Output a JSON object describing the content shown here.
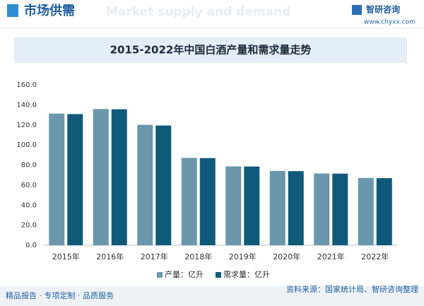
{
  "header": {
    "title": "市场供需",
    "subtitle": "Market supply and demand",
    "brand": "智研咨询",
    "url": "www.chyxx.com"
  },
  "chart_data": {
    "type": "bar",
    "title": "2015-2022年中国白酒产量和需求量走势",
    "categories": [
      "2015年",
      "2016年",
      "2017年",
      "2018年",
      "2019年",
      "2020年",
      "2021年",
      "2022年"
    ],
    "series": [
      {
        "name": "产量：亿升",
        "color": "#6a97ab",
        "values": [
          131.3,
          135.8,
          120.1,
          87.1,
          78.6,
          74.1,
          71.6,
          67.1
        ]
      },
      {
        "name": "需求量：亿升",
        "color": "#0f5a7b",
        "values": [
          130.8,
          135.6,
          119.4,
          86.9,
          78.5,
          73.9,
          71.4,
          66.9
        ]
      }
    ],
    "ylim": [
      0,
      160
    ],
    "yticks": [
      {
        "value": 0,
        "label": "0.0"
      },
      {
        "value": 20,
        "label": "20.0"
      },
      {
        "value": 40,
        "label": "40.0"
      },
      {
        "value": 60,
        "label": "60.0"
      },
      {
        "value": 80,
        "label": "80.0"
      },
      {
        "value": 100,
        "label": "100.0"
      },
      {
        "value": 120,
        "label": "120.0"
      },
      {
        "value": 140,
        "label": "140.0"
      },
      {
        "value": 160,
        "label": "160.0"
      }
    ],
    "grid": false,
    "legend": "bottom"
  },
  "footer": {
    "left": "精品报告 · 专项定制 · 品质服务",
    "right": "资料来源：国家统计局、智研咨询整理"
  }
}
